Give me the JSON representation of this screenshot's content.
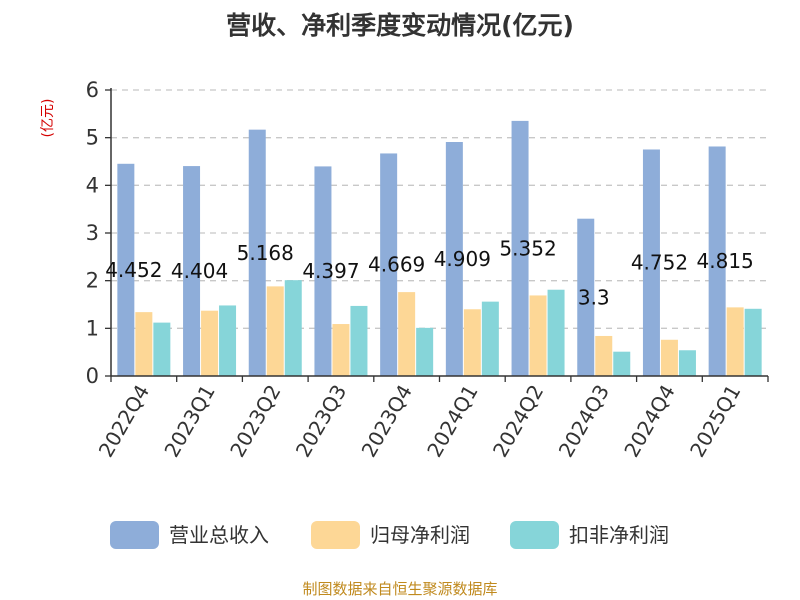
{
  "chart_data": {
    "type": "bar",
    "title": "营收、净利季度变动情况(亿元)",
    "unit_label": "(亿元)",
    "categories": [
      "2022Q4",
      "2023Q1",
      "2023Q2",
      "2023Q3",
      "2023Q4",
      "2024Q1",
      "2024Q2",
      "2024Q3",
      "2024Q4",
      "2025Q1"
    ],
    "series": [
      {
        "name": "营业总收入",
        "color": "#8eadd9",
        "values": [
          4.452,
          4.404,
          5.168,
          4.397,
          4.669,
          4.909,
          5.352,
          3.3,
          4.752,
          4.815
        ],
        "labels": [
          "4.452",
          "4.404",
          "5.168",
          "4.397",
          "4.669",
          "4.909",
          "5.352",
          "3.3",
          "4.752",
          "4.815"
        ]
      },
      {
        "name": "归母净利润",
        "color": "#fdd796",
        "values": [
          1.34,
          1.37,
          1.88,
          1.09,
          1.76,
          1.4,
          1.69,
          0.84,
          0.76,
          1.44
        ]
      },
      {
        "name": "扣非净利润",
        "color": "#86d5d9",
        "values": [
          1.12,
          1.48,
          2.01,
          1.47,
          1.01,
          1.56,
          1.81,
          0.51,
          0.54,
          1.41
        ]
      }
    ],
    "ylim": [
      0,
      6
    ],
    "yticks": [
      "0",
      "1",
      "2",
      "3",
      "4",
      "5",
      "6"
    ],
    "grid": true,
    "legend_position": "bottom"
  },
  "source_text": "制图数据来自恒生聚源数据库"
}
